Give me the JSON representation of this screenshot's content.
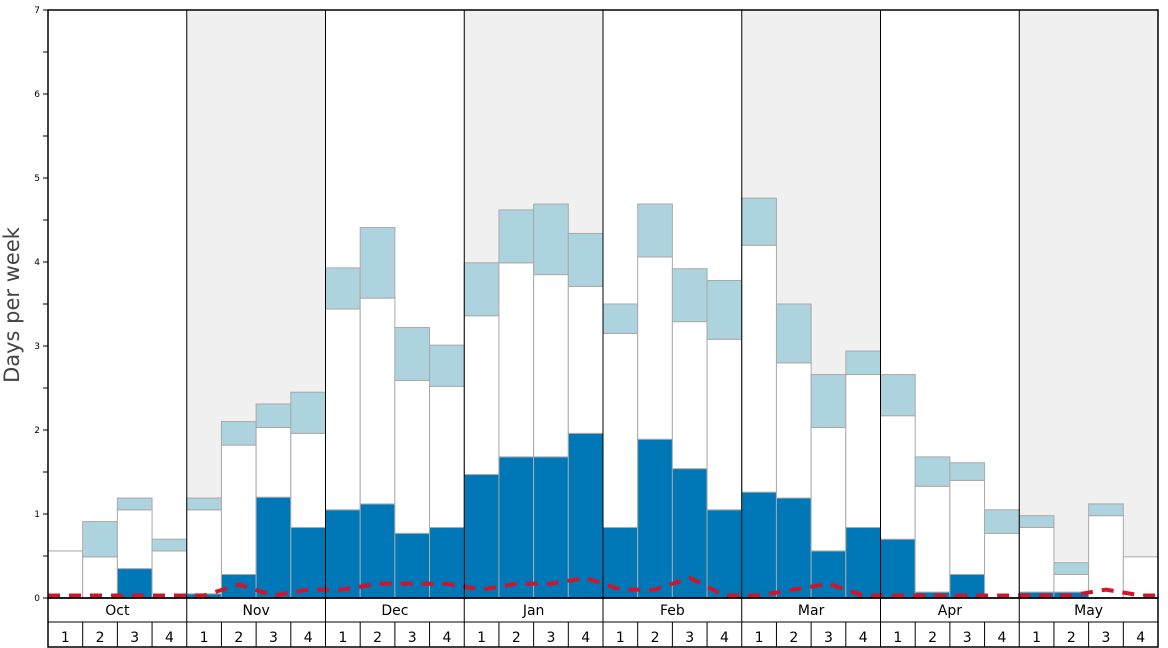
{
  "chart_data": {
    "type": "bar",
    "stacked": true,
    "ylabel": "Days per week",
    "ylim": [
      0,
      7
    ],
    "yticks_major": [
      0,
      1,
      2,
      3,
      4,
      5,
      6,
      7
    ],
    "months": [
      "Oct",
      "Nov",
      "Dec",
      "Jan",
      "Feb",
      "Mar",
      "Apr",
      "May"
    ],
    "weeks": [
      "1",
      "2",
      "3",
      "4"
    ],
    "alternating_month_shading": "#f0f0f0",
    "series": [
      {
        "color": "#0077b6",
        "values": [
          0,
          0,
          0.35,
          0,
          0.05,
          0.28,
          1.2,
          0.84,
          1.05,
          1.12,
          0.77,
          0.84,
          1.47,
          1.68,
          1.68,
          1.96,
          0.84,
          1.89,
          1.54,
          1.05,
          1.26,
          1.19,
          0.56,
          0.84,
          0.7,
          0.07,
          0.28,
          0,
          0.07,
          0.07,
          0,
          0
        ]
      },
      {
        "color": "#ffffff",
        "values": [
          0.56,
          0.49,
          0.7,
          0.56,
          1.0,
          1.54,
          0.83,
          1.12,
          2.39,
          2.45,
          1.82,
          1.68,
          1.89,
          2.31,
          2.17,
          1.75,
          2.31,
          2.17,
          1.75,
          2.03,
          2.94,
          1.61,
          1.47,
          1.82,
          1.47,
          1.26,
          1.12,
          0.77,
          0.77,
          0.21,
          0.98,
          0.49
        ]
      },
      {
        "color": "#add3df",
        "values": [
          0,
          0.42,
          0.14,
          0.14,
          0.14,
          0.28,
          0.28,
          0.49,
          0.49,
          0.84,
          0.63,
          0.49,
          0.63,
          0.63,
          0.84,
          0.63,
          0.35,
          0.63,
          0.63,
          0.7,
          0.56,
          0.7,
          0.63,
          0.28,
          0.49,
          0.35,
          0.21,
          0.28,
          0.14,
          0.14,
          0.14,
          0
        ]
      }
    ],
    "average_line": {
      "color": "#d0142b",
      "style": "dashed",
      "values": [
        0.03,
        0.03,
        0.03,
        0.03,
        0.03,
        0.16,
        0.03,
        0.1,
        0.1,
        0.17,
        0.17,
        0.17,
        0.1,
        0.17,
        0.17,
        0.24,
        0.1,
        0.1,
        0.24,
        0.03,
        0.03,
        0.1,
        0.17,
        0.03,
        0.03,
        0.03,
        0.03,
        0.03,
        0.03,
        0.03,
        0.1,
        0.03
      ]
    }
  }
}
